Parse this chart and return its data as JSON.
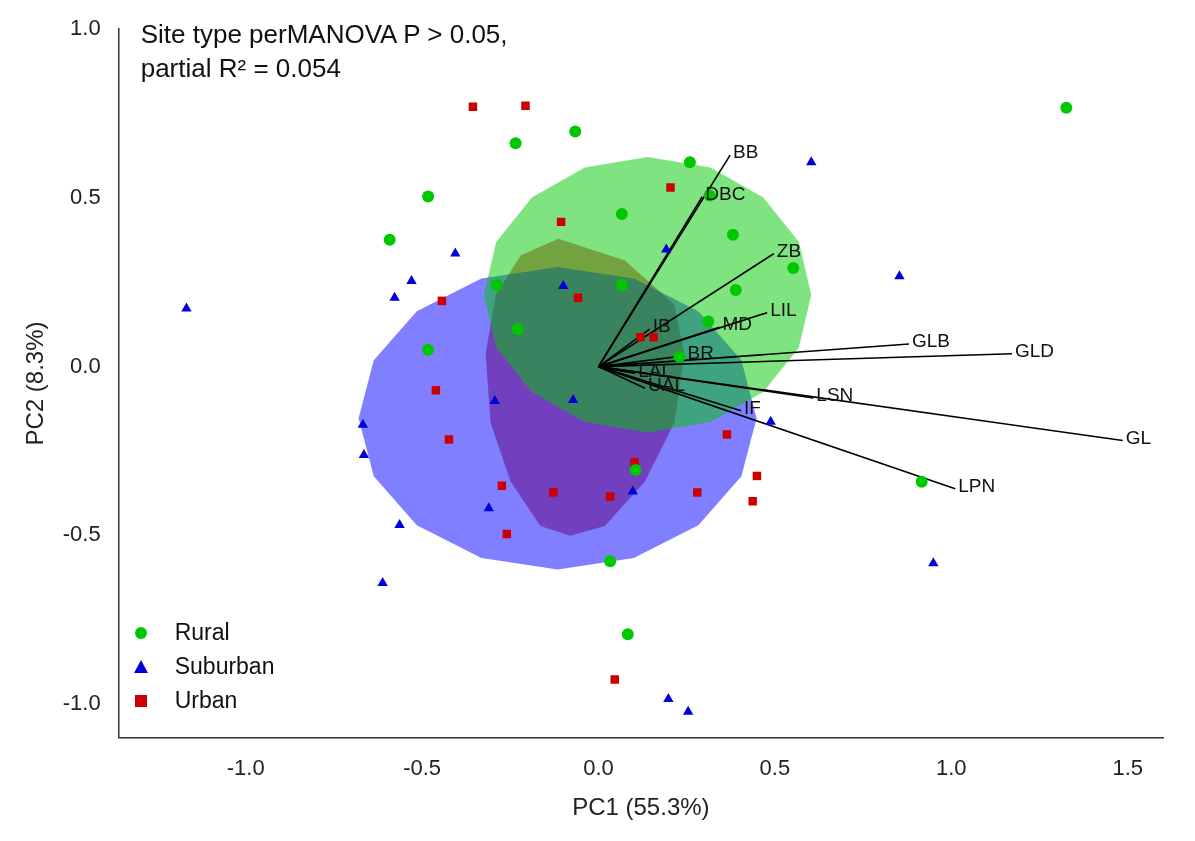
{
  "chart_data": {
    "type": "scatter",
    "xlabel": "PC1 (55.3%)",
    "ylabel": "PC2 (8.3%)",
    "annotations": [
      "Site type perMANOVA P > 0.05, partial R² = 0.054"
    ],
    "xlim": [
      -1.36,
      1.6
    ],
    "ylim": [
      -1.1,
      1.0
    ],
    "xticks": [
      {
        "value": -1,
        "label": "-1.0"
      },
      -0.5,
      {
        "value": 0,
        "label": "0.0"
      },
      0.5,
      {
        "value": 1,
        "label": "1.0"
      },
      1.5
    ],
    "yticks": [
      {
        "value": -1,
        "label": "-1.0"
      },
      -0.5,
      {
        "value": 0,
        "label": "0.0"
      },
      0.5,
      {
        "value": 1,
        "label": "1.0"
      }
    ],
    "grid": false,
    "legend": "bottom left",
    "series": [
      {
        "name": "Rural",
        "type": "scatter",
        "marker": "circle",
        "color": "#00c800",
        "x": [
          1.326,
          -0.066,
          -0.235,
          0.259,
          -0.483,
          0.066,
          -0.592,
          0.381,
          0.552,
          0.389,
          -0.288,
          0.066,
          -0.229,
          0.311,
          -0.483,
          0.229,
          0.105,
          0.916,
          0.033,
          0.083,
          0.315
        ],
        "values": [
          0.767,
          0.697,
          0.662,
          0.606,
          0.504,
          0.452,
          0.376,
          0.391,
          0.292,
          0.227,
          0.242,
          0.242,
          0.111,
          0.134,
          0.05,
          0.029,
          -0.306,
          -0.341,
          -0.577,
          -0.793,
          0.507
        ]
      },
      {
        "name": "Suburban",
        "type": "scatter",
        "marker": "triangle",
        "color": "#0000dc",
        "x": [
          -1.168,
          -0.406,
          -0.53,
          -0.578,
          -0.1,
          0.192,
          0.603,
          0.853,
          -0.294,
          -0.072,
          -0.668,
          -0.665,
          0.488,
          -0.311,
          0.097,
          -0.564,
          -0.612,
          0.949,
          0.198,
          0.254
        ],
        "values": [
          0.172,
          0.335,
          0.254,
          0.204,
          0.239,
          0.347,
          0.606,
          0.268,
          -0.102,
          -0.099,
          -0.172,
          -0.262,
          -0.163,
          -0.42,
          -0.37,
          -0.469,
          -0.641,
          -0.583,
          -0.985,
          -1.023
        ]
      },
      {
        "name": "Urban",
        "type": "scatter",
        "marker": "square",
        "color": "#cc0000",
        "x": [
          -0.356,
          -0.207,
          0.204,
          -0.106,
          -0.444,
          -0.058,
          0.119,
          0.156,
          -0.461,
          -0.424,
          -0.274,
          -0.26,
          -0.128,
          0.033,
          0.102,
          0.28,
          0.364,
          0.449,
          0.437,
          0.046
        ],
        "values": [
          0.77,
          0.773,
          0.531,
          0.429,
          0.195,
          0.204,
          0.087,
          0.087,
          -0.07,
          -0.216,
          -0.353,
          -0.496,
          -0.373,
          -0.385,
          -0.283,
          -0.373,
          -0.201,
          -0.324,
          -0.399,
          -0.927
        ]
      },
      {
        "type": "area",
        "color": "#00c800",
        "x": [
          0.603,
          0.568,
          0.467,
          0.317,
          0.139,
          -0.039,
          -0.189,
          -0.29,
          -0.325,
          -0.29,
          -0.189,
          -0.039,
          0.139,
          0.317,
          0.467,
          0.568
        ],
        "values": [
          0.213,
          0.369,
          0.501,
          0.59,
          0.621,
          0.59,
          0.501,
          0.369,
          0.213,
          0.057,
          -0.075,
          -0.164,
          -0.195,
          -0.164,
          -0.075,
          0.057
        ]
      },
      {
        "type": "area",
        "color": "#0000ff",
        "x": [
          0.448,
          0.405,
          0.283,
          0.1,
          -0.116,
          -0.332,
          -0.515,
          -0.637,
          -0.68,
          -0.637,
          -0.515,
          -0.332,
          -0.116,
          0.1,
          0.283,
          0.405
        ],
        "values": [
          -0.153,
          0.019,
          0.164,
          0.261,
          0.295,
          0.261,
          0.164,
          0.019,
          -0.153,
          -0.325,
          -0.47,
          -0.567,
          -0.601,
          -0.567,
          -0.47,
          -0.325
        ]
      },
      {
        "type": "area",
        "color": "#cc0000",
        "x": [
          -0.114,
          0.074,
          0.215,
          0.243,
          0.215,
          0.131,
          0.018,
          -0.08,
          -0.165,
          -0.249,
          -0.306,
          -0.32,
          -0.291,
          -0.221
        ],
        "values": [
          0.379,
          0.315,
          0.184,
          0.038,
          -0.166,
          -0.341,
          -0.472,
          -0.501,
          -0.472,
          -0.341,
          -0.166,
          0.038,
          0.213,
          0.329
        ]
      },
      {
        "name": "BB",
        "type": "line",
        "color": "#000000",
        "x": [
          0,
          0.373
        ],
        "values": [
          0,
          0.627
        ]
      },
      {
        "name": "DBC",
        "type": "line",
        "color": "#000000",
        "x": [
          0,
          0.294
        ],
        "values": [
          0,
          0.504
        ]
      },
      {
        "name": "ZB",
        "type": "line",
        "color": "#000000",
        "x": [
          0,
          0.497
        ],
        "values": [
          0,
          0.335
        ]
      },
      {
        "name": "LIL",
        "type": "line",
        "color": "#000000",
        "x": [
          0,
          0.478
        ],
        "values": [
          0,
          0.16
        ]
      },
      {
        "name": "MD",
        "type": "line",
        "color": "#000000",
        "x": [
          0,
          0.343
        ],
        "values": [
          0,
          0.117
        ]
      },
      {
        "name": "IB",
        "type": "line",
        "color": "#000000",
        "x": [
          0,
          0.145
        ],
        "values": [
          0,
          0.111
        ]
      },
      {
        "name": "GLB",
        "type": "line",
        "color": "#000000",
        "x": [
          0,
          0.88
        ],
        "values": [
          0,
          0.067
        ]
      },
      {
        "name": "GLD",
        "type": "line",
        "color": "#000000",
        "x": [
          0,
          1.172
        ],
        "values": [
          0,
          0.038
        ]
      },
      {
        "name": "BR",
        "type": "line",
        "color": "#000000",
        "x": [
          0,
          0.244
        ],
        "values": [
          0,
          0.032
        ]
      },
      {
        "name": "LAL",
        "type": "line",
        "color": "#000000",
        "x": [
          0,
          0.104
        ],
        "values": [
          0,
          -0.02
        ]
      },
      {
        "name": "UAL",
        "type": "line",
        "color": "#000000",
        "x": [
          0,
          0.132
        ],
        "values": [
          0,
          -0.064
        ]
      },
      {
        "name": "IF",
        "type": "line",
        "color": "#000000",
        "x": [
          0,
          0.404
        ],
        "values": [
          0,
          -0.131
        ]
      },
      {
        "name": "LSN",
        "type": "line",
        "color": "#000000",
        "x": [
          0,
          0.609
        ],
        "values": [
          0,
          -0.093
        ]
      },
      {
        "name": "GL",
        "type": "line",
        "color": "#000000",
        "x": [
          0,
          1.486
        ],
        "values": [
          0,
          -0.219
        ]
      },
      {
        "name": "LPN",
        "type": "line",
        "color": "#000000",
        "x": [
          0,
          1.011
        ],
        "values": [
          0,
          -0.362
        ]
      }
    ]
  }
}
